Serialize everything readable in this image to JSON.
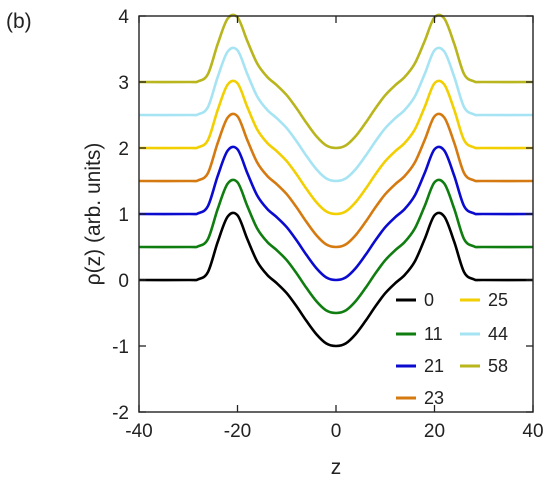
{
  "panel_label": "(b)",
  "chart_data": {
    "type": "line",
    "title": "",
    "xlabel": "z",
    "ylabel": "ρ(z) (arb. units)",
    "xlim": [
      -40,
      40
    ],
    "ylim": [
      -2,
      4
    ],
    "xticks": [
      -40,
      -20,
      0,
      20,
      40
    ],
    "yticks": [
      -2,
      -1,
      0,
      1,
      2,
      3,
      4
    ],
    "grid": false,
    "legend_position": "bottom-right",
    "series": [
      {
        "name": "0",
        "offset": 0.0,
        "color": "#000000"
      },
      {
        "name": "11",
        "offset": 0.5,
        "color": "#0f7d0f"
      },
      {
        "name": "21",
        "offset": 1.0,
        "color": "#0b0bd0"
      },
      {
        "name": "23",
        "offset": 1.5,
        "color": "#d57a10"
      },
      {
        "name": "25",
        "offset": 2.0,
        "color": "#f2cf00"
      },
      {
        "name": "44",
        "offset": 2.5,
        "color": "#a6e4f4"
      },
      {
        "name": "58",
        "offset": 3.0,
        "color": "#b9b51c"
      }
    ],
    "profile": {
      "x": [
        -40,
        -30,
        -28,
        -26,
        -24,
        -22,
        -20,
        -18,
        -16,
        -14,
        -12,
        -10,
        -8,
        -6,
        -4,
        -2,
        0,
        2,
        4,
        6,
        8,
        10,
        12,
        14,
        16,
        18,
        20,
        22,
        24,
        26,
        28,
        30,
        40
      ],
      "y": [
        0,
        0,
        0.01,
        0.12,
        0.58,
        0.96,
        0.98,
        0.62,
        0.28,
        0.08,
        -0.05,
        -0.2,
        -0.4,
        -0.62,
        -0.82,
        -0.96,
        -1.0,
        -0.96,
        -0.82,
        -0.62,
        -0.4,
        -0.2,
        -0.05,
        0.08,
        0.28,
        0.62,
        0.98,
        0.96,
        0.58,
        0.12,
        0.01,
        0,
        0
      ]
    }
  }
}
